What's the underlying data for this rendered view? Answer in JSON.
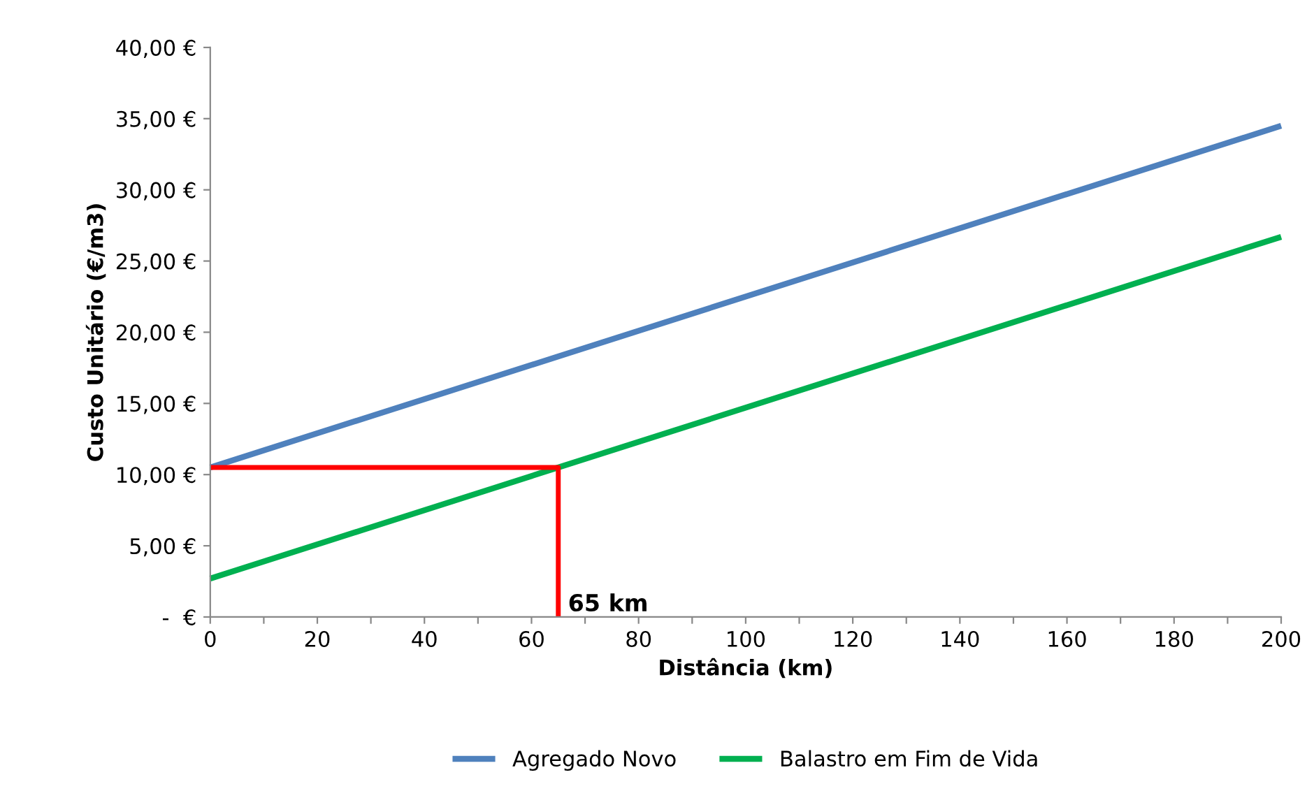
{
  "chart_data": {
    "type": "line",
    "xlabel": "Distância (km)",
    "ylabel": "Custo Unitário (€/m3)",
    "xlim": [
      0,
      200
    ],
    "ylim": [
      0,
      40
    ],
    "xticks": [
      0,
      {
        "value": 10,
        "label": null
      },
      20,
      {
        "value": 30,
        "label": null
      },
      40,
      {
        "value": 50,
        "label": null
      },
      60,
      {
        "value": 70,
        "label": null
      },
      80,
      {
        "value": 90,
        "label": null
      },
      100,
      {
        "value": 110,
        "label": null
      },
      120,
      {
        "value": 130,
        "label": null
      },
      140,
      {
        "value": 150,
        "label": null
      },
      160,
      {
        "value": 170,
        "label": null
      },
      180,
      {
        "value": 190,
        "label": null
      },
      200
    ],
    "yticks": [
      {
        "value": 0,
        "label": " -  €"
      },
      {
        "value": 5,
        "label": "5,00 €"
      },
      {
        "value": 10,
        "label": "10,00 €"
      },
      {
        "value": 15,
        "label": "15,00 €"
      },
      {
        "value": 20,
        "label": "20,00 €"
      },
      {
        "value": 25,
        "label": "25,00 €"
      },
      {
        "value": 30,
        "label": "30,00 €"
      },
      {
        "value": 35,
        "label": "35,00 €"
      },
      {
        "value": 40,
        "label": "40,00 €"
      }
    ],
    "series": [
      {
        "name": "Agregado Novo",
        "color": "#4f81bd",
        "x": [
          0,
          200
        ],
        "values": [
          10.5,
          34.5
        ]
      },
      {
        "name": "Balastro em Fim de Vida",
        "color": "#00b050",
        "x": [
          0,
          200
        ],
        "values": [
          2.7,
          26.7
        ]
      },
      {
        "color": "#ff0000",
        "x": [
          0,
          65,
          65
        ],
        "values": [
          10.5,
          10.5,
          0
        ]
      }
    ],
    "annotations": [
      {
        "text": "65 km",
        "x": 65,
        "y": 0
      }
    ],
    "grid": false,
    "legend": "bottom",
    "line_style": "solid",
    "marker": "none"
  }
}
